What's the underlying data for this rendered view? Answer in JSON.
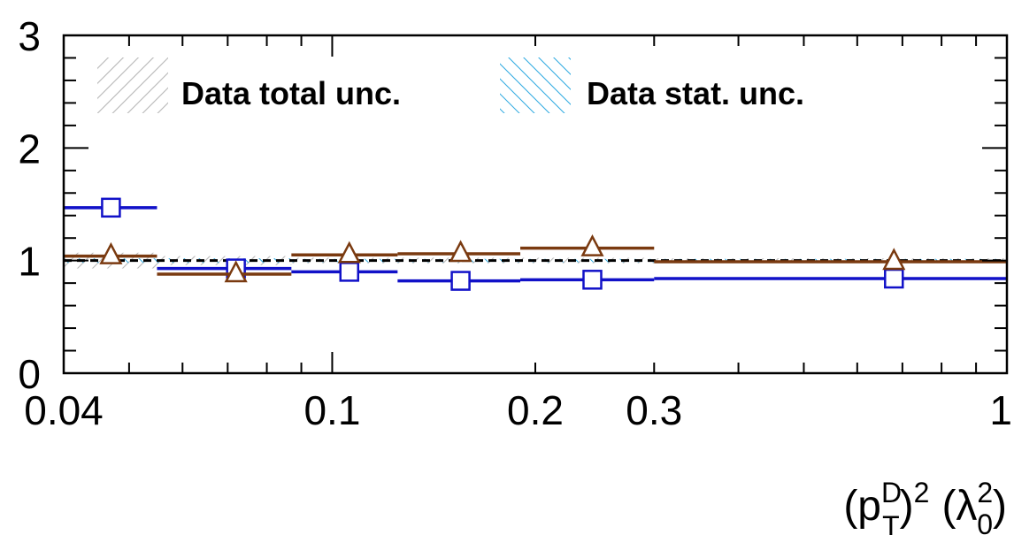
{
  "chart_data": {
    "type": "line",
    "x_scale": "log",
    "xlim": [
      0.04,
      1
    ],
    "ylim": [
      0,
      3
    ],
    "grid": false,
    "legend_position": "top",
    "xticks": [
      {
        "value": 0.04,
        "label": "0.04"
      },
      {
        "value": 0.1,
        "label": "0.1"
      },
      {
        "value": 0.2,
        "label": "0.2"
      },
      {
        "value": 0.3,
        "label": "0.3"
      },
      {
        "value": 1,
        "label": "1"
      }
    ],
    "yticks": [
      {
        "value": 0,
        "label": "0"
      },
      {
        "value": 1,
        "label": "1"
      },
      {
        "value": 2,
        "label": "2"
      },
      {
        "value": 3,
        "label": "3"
      }
    ],
    "xlabel": {
      "open": "(p",
      "sup": "D",
      "sub": "T",
      "close": ")",
      "power": "2",
      "unit_open": "(λ",
      "unit_sup": "2",
      "unit_sub": "0",
      "unit_close": ")"
    },
    "legend": [
      {
        "label": "Data total unc.",
        "pattern": "total",
        "color": "#b8b8b8"
      },
      {
        "label": "Data stat. unc.",
        "pattern": "stat",
        "color": "#2aa8e0"
      }
    ],
    "reference_line": {
      "y": 1,
      "color": "#000000",
      "style": "dashed"
    },
    "bins": [
      0.04,
      0.055,
      0.087,
      0.125,
      0.19,
      0.3,
      1.0
    ],
    "uncertainty_bands": {
      "total": [
        [
          0.93,
          1.07
        ],
        [
          0.96,
          1.04
        ],
        [
          0.975,
          1.025
        ],
        [
          0.975,
          1.025
        ],
        [
          0.975,
          1.025
        ],
        [
          0.98,
          1.02
        ]
      ],
      "stat": [
        [
          0.98,
          1.02
        ],
        [
          0.98,
          1.02
        ],
        [
          0.985,
          1.015
        ],
        [
          0.985,
          1.015
        ],
        [
          0.985,
          1.015
        ],
        [
          0.985,
          1.015
        ]
      ]
    },
    "series": [
      {
        "color": "#1111c8",
        "marker": "square",
        "points": [
          {
            "x": 0.047,
            "y": 1.47,
            "xlo": 0.04,
            "xhi": 0.055
          },
          {
            "x": 0.072,
            "y": 0.93,
            "xlo": 0.055,
            "xhi": 0.087
          },
          {
            "x": 0.106,
            "y": 0.9,
            "xlo": 0.087,
            "xhi": 0.125
          },
          {
            "x": 0.155,
            "y": 0.82,
            "xlo": 0.125,
            "xhi": 0.19
          },
          {
            "x": 0.243,
            "y": 0.83,
            "xlo": 0.19,
            "xhi": 0.3
          },
          {
            "x": 0.68,
            "y": 0.84,
            "xlo": 0.3,
            "xhi": 1.0
          }
        ]
      },
      {
        "color": "#7a3a10",
        "marker": "triangle",
        "points": [
          {
            "x": 0.047,
            "y": 1.04,
            "xlo": 0.04,
            "xhi": 0.055
          },
          {
            "x": 0.072,
            "y": 0.88,
            "xlo": 0.055,
            "xhi": 0.087
          },
          {
            "x": 0.106,
            "y": 1.05,
            "xlo": 0.087,
            "xhi": 0.125
          },
          {
            "x": 0.155,
            "y": 1.06,
            "xlo": 0.125,
            "xhi": 0.19
          },
          {
            "x": 0.243,
            "y": 1.11,
            "xlo": 0.19,
            "xhi": 0.3
          },
          {
            "x": 0.68,
            "y": 0.99,
            "xlo": 0.3,
            "xhi": 1.0
          }
        ]
      }
    ]
  }
}
